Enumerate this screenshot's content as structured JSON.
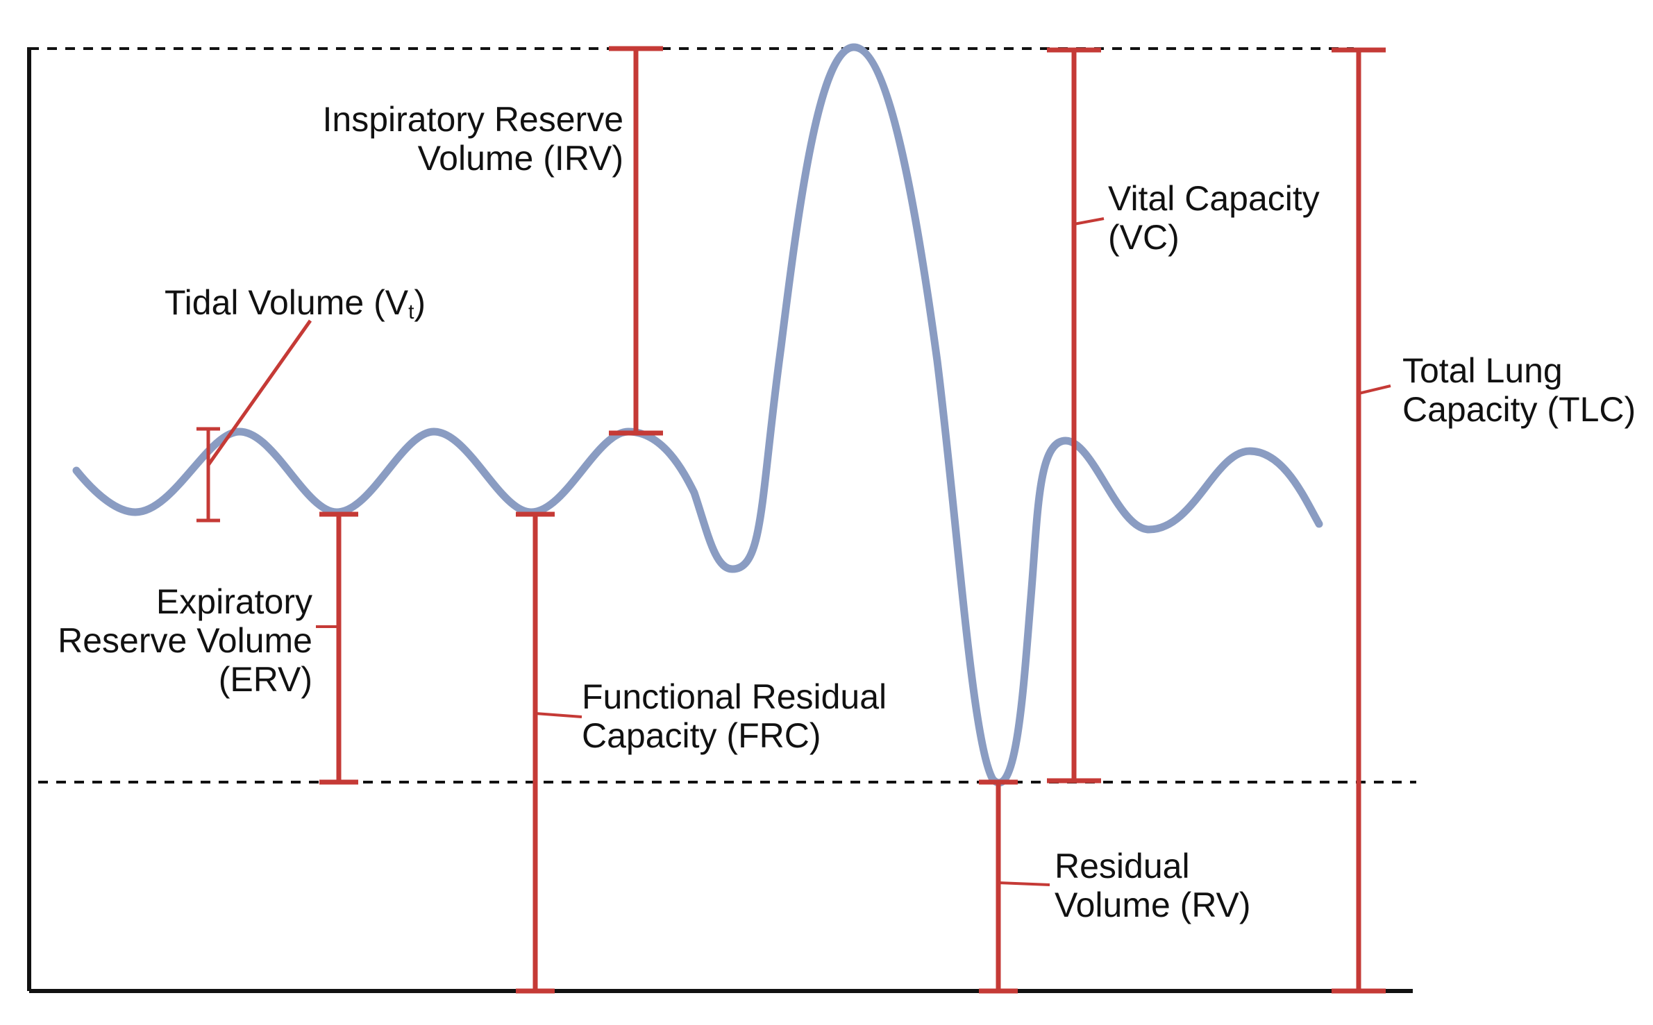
{
  "diagram": {
    "labels": {
      "tidal": {
        "text": "Tidal Volume (V",
        "sub": "t",
        "close": ")"
      },
      "irv": {
        "line1": "Inspiratory Reserve",
        "line2": "Volume (IRV)"
      },
      "erv": {
        "line1": "Expiratory",
        "line2": "Reserve  Volume",
        "line3": "(ERV)"
      },
      "frc": {
        "line1": "Functional Residual",
        "line2": "Capacity (FRC)"
      },
      "vc": {
        "line1": "Vital Capacity",
        "line2": "(VC)"
      },
      "rv": {
        "line1": "Residual",
        "line2": "Volume (RV)"
      },
      "tlc": {
        "line1": "Total Lung",
        "line2": "Capacity (TLC)"
      }
    },
    "colors": {
      "curve": "#8a9cc2",
      "bracket": "#c53a36",
      "axis": "#111111"
    }
  }
}
